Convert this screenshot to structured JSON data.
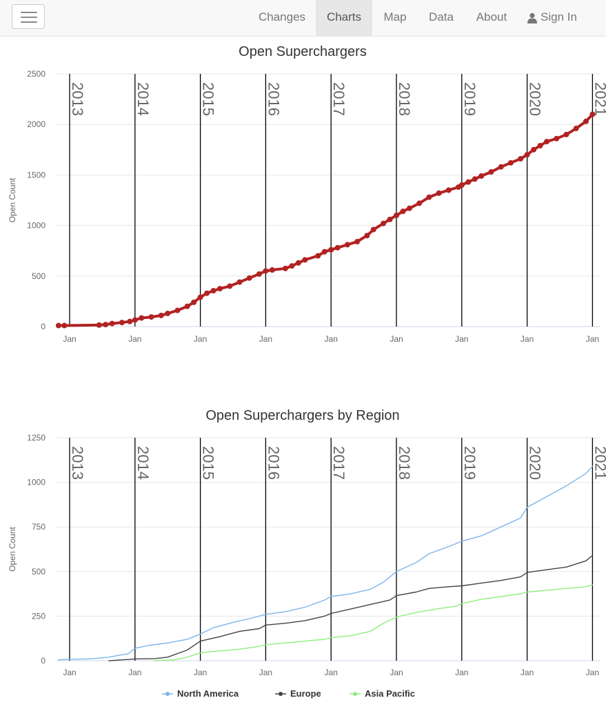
{
  "nav": {
    "menu_icon": "hamburger-menu-icon",
    "items": [
      {
        "label": "Changes",
        "active": false
      },
      {
        "label": "Charts",
        "active": true
      },
      {
        "label": "Map",
        "active": false
      },
      {
        "label": "Data",
        "active": false
      },
      {
        "label": "About",
        "active": false
      }
    ],
    "signin": {
      "label": "Sign In",
      "icon": "user-icon"
    }
  },
  "chart_data": [
    {
      "type": "line",
      "title": "Open Superchargers",
      "ylabel": "Open Count",
      "xlabel": "",
      "ylim": [
        0,
        2500
      ],
      "y_ticks": [
        0,
        500,
        1000,
        1500,
        2000,
        2500
      ],
      "x_tick_labels": [
        "Jan",
        "Jan",
        "Jan",
        "Jan",
        "Jan",
        "Jan",
        "Jan",
        "Jan",
        "Jan"
      ],
      "year_labels": [
        "2013",
        "2014",
        "2015",
        "2016",
        "2017",
        "2018",
        "2019",
        "2020",
        "2021"
      ],
      "line_color": "#b22222",
      "marker": "circle",
      "grid": true,
      "legend": false,
      "series": [
        {
          "x": [
            2012.83,
            2012.92,
            2013.45,
            2013.55,
            2013.65,
            2013.8,
            2013.92,
            2014.0,
            2014.1,
            2014.25,
            2014.4,
            2014.5,
            2014.65,
            2014.8,
            2014.9,
            2015.0,
            2015.1,
            2015.2,
            2015.3,
            2015.45,
            2015.6,
            2015.75,
            2015.9,
            2016.0,
            2016.1,
            2016.3,
            2016.4,
            2016.5,
            2016.6,
            2016.8,
            2016.9,
            2017.0,
            2017.1,
            2017.25,
            2017.4,
            2017.55,
            2017.65,
            2017.8,
            2017.9,
            2018.0,
            2018.1,
            2018.2,
            2018.35,
            2018.5,
            2018.65,
            2018.8,
            2018.95,
            2019.0,
            2019.1,
            2019.2,
            2019.3,
            2019.45,
            2019.6,
            2019.75,
            2019.9,
            2020.0,
            2020.1,
            2020.2,
            2020.3,
            2020.45,
            2020.6,
            2020.75,
            2020.9,
            2021.0
          ],
          "y": [
            10,
            10,
            15,
            20,
            30,
            40,
            50,
            65,
            85,
            95,
            110,
            130,
            160,
            200,
            240,
            290,
            330,
            355,
            375,
            400,
            440,
            480,
            520,
            550,
            560,
            575,
            600,
            630,
            660,
            700,
            740,
            760,
            780,
            810,
            840,
            900,
            960,
            1020,
            1060,
            1100,
            1140,
            1170,
            1220,
            1280,
            1320,
            1350,
            1380,
            1400,
            1430,
            1460,
            1490,
            1530,
            1580,
            1620,
            1660,
            1700,
            1750,
            1790,
            1830,
            1860,
            1900,
            1960,
            2030,
            2100
          ]
        }
      ]
    },
    {
      "type": "line",
      "title": "Open Superchargers by Region",
      "ylabel": "Open Count",
      "xlabel": "",
      "ylim": [
        0,
        1250
      ],
      "y_ticks": [
        0,
        250,
        500,
        750,
        1000,
        1250
      ],
      "x_tick_labels": [
        "Jan",
        "Jan",
        "Jan",
        "Jan",
        "Jan",
        "Jan",
        "Jan",
        "Jan",
        "Jan"
      ],
      "year_labels": [
        "2013",
        "2014",
        "2015",
        "2016",
        "2017",
        "2018",
        "2019",
        "2020",
        "2021"
      ],
      "grid": true,
      "legend": "bottom-center",
      "series": [
        {
          "name": "North America",
          "color": "#7cb5ec",
          "x": [
            2012.83,
            2013.0,
            2013.3,
            2013.6,
            2013.9,
            2014.0,
            2014.2,
            2014.5,
            2014.8,
            2015.0,
            2015.2,
            2015.5,
            2015.8,
            2016.0,
            2016.3,
            2016.6,
            2016.9,
            2017.0,
            2017.3,
            2017.6,
            2017.8,
            2018.0,
            2018.3,
            2018.5,
            2018.8,
            2019.0,
            2019.3,
            2019.6,
            2019.9,
            2020.0,
            2020.3,
            2020.6,
            2020.9,
            2021.0
          ],
          "y": [
            5,
            8,
            10,
            20,
            40,
            70,
            85,
            100,
            120,
            150,
            185,
            215,
            240,
            260,
            275,
            300,
            340,
            360,
            375,
            400,
            440,
            500,
            550,
            600,
            640,
            670,
            700,
            750,
            800,
            860,
            920,
            980,
            1050,
            1090
          ]
        },
        {
          "name": "Europe",
          "color": "#434348",
          "x": [
            2013.6,
            2013.8,
            2014.0,
            2014.3,
            2014.5,
            2014.8,
            2015.0,
            2015.3,
            2015.6,
            2015.9,
            2016.0,
            2016.3,
            2016.6,
            2016.9,
            2017.0,
            2017.3,
            2017.6,
            2017.9,
            2018.0,
            2018.3,
            2018.5,
            2018.8,
            2019.0,
            2019.3,
            2019.6,
            2019.9,
            2020.0,
            2020.3,
            2020.6,
            2020.9,
            2021.0
          ],
          "y": [
            0,
            5,
            10,
            12,
            20,
            60,
            110,
            135,
            165,
            180,
            200,
            210,
            225,
            250,
            265,
            290,
            315,
            340,
            365,
            385,
            405,
            415,
            420,
            435,
            450,
            470,
            495,
            510,
            525,
            560,
            590
          ]
        },
        {
          "name": "Asia Pacific",
          "color": "#90ed7d",
          "x": [
            2014.3,
            2014.6,
            2014.8,
            2015.0,
            2015.3,
            2015.6,
            2015.9,
            2016.0,
            2016.3,
            2016.6,
            2016.9,
            2017.0,
            2017.3,
            2017.6,
            2017.8,
            2018.0,
            2018.3,
            2018.6,
            2018.9,
            2019.0,
            2019.3,
            2019.6,
            2019.9,
            2020.0,
            2020.3,
            2020.6,
            2020.9,
            2021.0
          ],
          "y": [
            0,
            5,
            20,
            45,
            55,
            65,
            80,
            90,
            100,
            110,
            120,
            130,
            140,
            165,
            210,
            245,
            270,
            290,
            305,
            320,
            345,
            360,
            375,
            385,
            395,
            405,
            415,
            425
          ]
        }
      ]
    }
  ]
}
